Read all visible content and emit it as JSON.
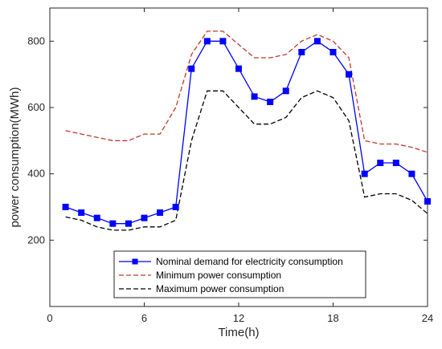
{
  "chart_data": {
    "type": "line",
    "title": "",
    "xlabel": "Time(h)",
    "ylabel": "power consumption(MWh)",
    "xlim": [
      0,
      24
    ],
    "ylim": [
      0,
      900
    ],
    "xticks": [
      0,
      6,
      12,
      18,
      24
    ],
    "yticks": [
      200,
      400,
      600,
      800
    ],
    "grid": false,
    "legend_position": "bottom-center",
    "x": [
      1,
      2,
      3,
      4,
      5,
      6,
      7,
      8,
      9,
      10,
      11,
      12,
      13,
      14,
      15,
      16,
      17,
      18,
      19,
      20,
      21,
      22,
      23,
      24
    ],
    "series": [
      {
        "name": "Nominal demand for electricity consumption",
        "color": "#0000ff",
        "style": "solid-square-markers",
        "values": [
          300,
          283,
          267,
          250,
          250,
          267,
          283,
          300,
          717,
          800,
          800,
          717,
          633,
          617,
          650,
          767,
          800,
          767,
          700,
          400,
          433,
          433,
          400,
          317
        ]
      },
      {
        "name": "Minimum power consumption",
        "color": "#c0392b",
        "style": "dashed",
        "values": [
          530,
          520,
          510,
          500,
          500,
          520,
          520,
          600,
          760,
          830,
          830,
          790,
          750,
          750,
          760,
          800,
          820,
          800,
          750,
          500,
          490,
          490,
          480,
          465
        ]
      },
      {
        "name": "Maximum power consumption",
        "color": "#000000",
        "style": "dashed",
        "values": [
          270,
          260,
          240,
          230,
          230,
          240,
          240,
          260,
          500,
          650,
          650,
          600,
          550,
          550,
          570,
          630,
          650,
          630,
          560,
          330,
          340,
          340,
          320,
          280
        ]
      }
    ]
  }
}
